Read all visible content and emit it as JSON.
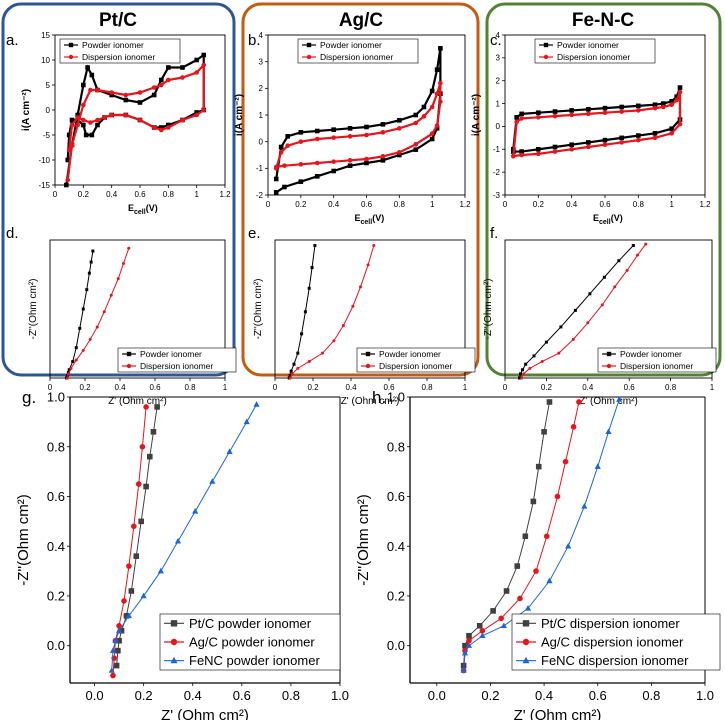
{
  "groups": [
    {
      "title": "Pt/C",
      "color": "#2f5597"
    },
    {
      "title": "Ag/C",
      "color": "#c55a11"
    },
    {
      "title": "Fe-N-C",
      "color": "#548235"
    }
  ],
  "colors": {
    "powder": "#000000",
    "dispersion": "#e8141b",
    "pt": "#404040",
    "ag": "#e8141b",
    "fenc": "#1a66d9"
  },
  "chart_data": [
    {
      "id": "a",
      "panel_label": "a.",
      "type": "line",
      "xlabel_main": "E",
      "xlabel_sub": "cell",
      "xlabel_tail": "(V)",
      "ylabel": "i(A cm⁻²)",
      "xlim": [
        0,
        1.2
      ],
      "ylim": [
        -15,
        15
      ],
      "xticks": [
        "0",
        "0.2",
        "0.4",
        "0.6",
        "0.8",
        "1",
        "1.2"
      ],
      "yticks": [
        "15",
        "10",
        "5",
        "0",
        "-5",
        "-10",
        "-15"
      ],
      "legend": [
        "Powder ionomer",
        "Dispersion ionomer"
      ],
      "series": [
        {
          "name": "Powder ionomer",
          "kind": "powder",
          "x": [
            0.08,
            0.12,
            0.16,
            0.2,
            0.23,
            0.26,
            0.3,
            0.4,
            0.5,
            0.6,
            0.7,
            0.75,
            0.8,
            0.9,
            1.0,
            1.05,
            1.05,
            1.0,
            0.9,
            0.8,
            0.75,
            0.7,
            0.6,
            0.5,
            0.4,
            0.35,
            0.3,
            0.26,
            0.22,
            0.2,
            0.16,
            0.12,
            0.1,
            0.09
          ],
          "y": [
            -15,
            -7,
            -1,
            5,
            8.5,
            7,
            4,
            3,
            2,
            1.5,
            3,
            6,
            8.5,
            8.5,
            10,
            11,
            0,
            -0.5,
            -2,
            -3,
            -3.5,
            -3.5,
            -2,
            -1,
            -1,
            -1.5,
            -3,
            -5,
            -5,
            -3,
            -2,
            -2,
            -5,
            -10
          ]
        },
        {
          "name": "Dispersion ionomer",
          "kind": "dispersion",
          "x": [
            0.09,
            0.12,
            0.16,
            0.2,
            0.25,
            0.3,
            0.4,
            0.5,
            0.6,
            0.7,
            0.75,
            0.8,
            0.9,
            1.0,
            1.05,
            1.05,
            1.0,
            0.9,
            0.8,
            0.75,
            0.7,
            0.6,
            0.5,
            0.4,
            0.35,
            0.3,
            0.25,
            0.2,
            0.16,
            0.12,
            0.1
          ],
          "y": [
            -14,
            -7,
            -3,
            1,
            4,
            4,
            3.5,
            3,
            3.5,
            4.5,
            5,
            6,
            6.5,
            7.5,
            9,
            0,
            -1,
            -2,
            -3.5,
            -4,
            -3.5,
            -2,
            -1,
            -1,
            -1.5,
            -2,
            -2.5,
            -2,
            -1.5,
            -3,
            -8
          ]
        }
      ]
    },
    {
      "id": "b",
      "panel_label": "b.",
      "type": "line",
      "xlabel_main": "E",
      "xlabel_sub": "cell",
      "xlabel_tail": "(V)",
      "ylabel": "i(A cm⁻²)",
      "xlim": [
        0,
        1.2
      ],
      "ylim": [
        -2,
        4
      ],
      "xticks": [
        "0",
        "0.2",
        "0.4",
        "0.6",
        "0.8",
        "1",
        "1.2"
      ],
      "yticks": [
        "4",
        "3",
        "2",
        "1",
        "0",
        "-1",
        "-2"
      ],
      "legend": [
        "Powder ionomer",
        "Dispersion ionomer"
      ],
      "series": [
        {
          "name": "Powder ionomer",
          "kind": "powder",
          "x": [
            0.05,
            0.08,
            0.12,
            0.2,
            0.3,
            0.4,
            0.5,
            0.6,
            0.7,
            0.8,
            0.9,
            0.95,
            1.0,
            1.03,
            1.05,
            1.05,
            1.03,
            1.0,
            0.9,
            0.8,
            0.7,
            0.6,
            0.5,
            0.4,
            0.3,
            0.2,
            0.1,
            0.05
          ],
          "y": [
            -1.4,
            -0.2,
            0.2,
            0.35,
            0.4,
            0.45,
            0.5,
            0.55,
            0.65,
            0.8,
            1.0,
            1.3,
            1.9,
            2.7,
            3.5,
            1.8,
            0.5,
            0.1,
            -0.3,
            -0.5,
            -0.7,
            -0.8,
            -0.9,
            -1.1,
            -1.3,
            -1.5,
            -1.7,
            -1.9
          ]
        },
        {
          "name": "Dispersion ionomer",
          "kind": "dispersion",
          "x": [
            0.05,
            0.08,
            0.12,
            0.2,
            0.3,
            0.4,
            0.5,
            0.6,
            0.7,
            0.8,
            0.9,
            0.95,
            1.0,
            1.03,
            1.05,
            1.05,
            1.03,
            1.0,
            0.9,
            0.8,
            0.7,
            0.6,
            0.5,
            0.4,
            0.3,
            0.2,
            0.1,
            0.05
          ],
          "y": [
            -1.0,
            -0.4,
            -0.15,
            0.0,
            0.1,
            0.15,
            0.2,
            0.25,
            0.35,
            0.5,
            0.7,
            0.95,
            1.3,
            1.8,
            2.2,
            1.5,
            0.6,
            0.3,
            -0.1,
            -0.4,
            -0.55,
            -0.65,
            -0.7,
            -0.75,
            -0.8,
            -0.85,
            -0.9,
            -0.95
          ]
        }
      ]
    },
    {
      "id": "c",
      "panel_label": "c.",
      "type": "line",
      "xlabel_main": "E",
      "xlabel_sub": "cell",
      "xlabel_tail": "(V)",
      "ylabel": "i(A cm⁻²)",
      "xlim": [
        0,
        1.2
      ],
      "ylim": [
        -3,
        4
      ],
      "xticks": [
        "0",
        "0.2",
        "0.4",
        "0.6",
        "0.8",
        "1",
        "1.2"
      ],
      "yticks": [
        "4",
        "3",
        "2",
        "1",
        "0",
        "-1",
        "-2",
        "-3"
      ],
      "legend": [
        "Powder ionomer",
        "Dispersion ionomer"
      ],
      "series": [
        {
          "name": "Powder ionomer",
          "kind": "powder",
          "x": [
            0.05,
            0.07,
            0.1,
            0.2,
            0.3,
            0.4,
            0.5,
            0.6,
            0.7,
            0.8,
            0.9,
            0.95,
            1.0,
            1.03,
            1.05,
            1.05,
            1.0,
            0.9,
            0.8,
            0.7,
            0.6,
            0.5,
            0.4,
            0.3,
            0.2,
            0.1,
            0.05
          ],
          "y": [
            -1.0,
            0.4,
            0.55,
            0.6,
            0.65,
            0.7,
            0.75,
            0.8,
            0.85,
            0.9,
            0.95,
            1.0,
            1.1,
            1.3,
            1.7,
            0.3,
            -0.1,
            -0.3,
            -0.4,
            -0.5,
            -0.6,
            -0.7,
            -0.8,
            -0.9,
            -1.0,
            -1.1,
            -1.1
          ]
        },
        {
          "name": "Dispersion ionomer",
          "kind": "dispersion",
          "x": [
            0.05,
            0.07,
            0.1,
            0.2,
            0.3,
            0.4,
            0.5,
            0.6,
            0.7,
            0.8,
            0.9,
            0.95,
            1.0,
            1.03,
            1.05,
            1.05,
            1.0,
            0.9,
            0.8,
            0.7,
            0.6,
            0.5,
            0.4,
            0.3,
            0.2,
            0.1,
            0.05
          ],
          "y": [
            -1.3,
            0.2,
            0.35,
            0.4,
            0.45,
            0.5,
            0.55,
            0.6,
            0.65,
            0.7,
            0.8,
            0.85,
            0.95,
            1.15,
            1.5,
            0.1,
            -0.3,
            -0.5,
            -0.6,
            -0.7,
            -0.8,
            -0.9,
            -1.0,
            -1.1,
            -1.2,
            -1.25,
            -1.3
          ]
        }
      ]
    },
    {
      "id": "d",
      "panel_label": "d.",
      "type": "line",
      "xlabel": "Z' (Ohm cm²)",
      "ylabel": "-Z''(Ohm cm²)",
      "xlim": [
        0,
        1.0
      ],
      "ylim": [
        0,
        1.0
      ],
      "xticks": [
        "0",
        "0.2",
        "0.4",
        "0.6",
        "0.8",
        "1"
      ],
      "yticks": [],
      "legend": [
        "Powder ionomer",
        "Dispersion ionomer"
      ],
      "series": [
        {
          "name": "Powder ionomer",
          "kind": "powder",
          "x": [
            0.095,
            0.1,
            0.105,
            0.11,
            0.13,
            0.15,
            0.17,
            0.19,
            0.21,
            0.225,
            0.235,
            0.245
          ],
          "y": [
            0.0,
            0.02,
            0.04,
            0.06,
            0.12,
            0.22,
            0.36,
            0.5,
            0.64,
            0.76,
            0.84,
            0.92
          ]
        },
        {
          "name": "Dispersion ionomer",
          "kind": "dispersion",
          "x": [
            0.1,
            0.105,
            0.12,
            0.15,
            0.19,
            0.23,
            0.27,
            0.31,
            0.35,
            0.39,
            0.42,
            0.45
          ],
          "y": [
            0.0,
            0.03,
            0.07,
            0.13,
            0.2,
            0.28,
            0.37,
            0.48,
            0.6,
            0.72,
            0.83,
            0.94
          ]
        }
      ]
    },
    {
      "id": "e",
      "panel_label": "e.",
      "type": "line",
      "xlabel": "Z' (Ohm cm²)",
      "ylabel": "-Z''(Ohm cm²)",
      "xlim": [
        0,
        1.0
      ],
      "ylim": [
        0,
        1.0
      ],
      "xticks": [
        "0",
        "0.2",
        "0.4",
        "0.6",
        "0.8",
        "1"
      ],
      "yticks": [],
      "legend": [
        "Powder ionomer",
        "Dispersion ionomer"
      ],
      "series": [
        {
          "name": "Powder ionomer",
          "kind": "powder",
          "x": [
            0.075,
            0.08,
            0.085,
            0.1,
            0.12,
            0.14,
            0.16,
            0.18,
            0.195,
            0.21
          ],
          "y": [
            0.0,
            0.02,
            0.05,
            0.1,
            0.18,
            0.32,
            0.48,
            0.65,
            0.8,
            0.96
          ]
        },
        {
          "name": "Dispersion ionomer",
          "kind": "dispersion",
          "x": [
            0.08,
            0.09,
            0.12,
            0.18,
            0.25,
            0.31,
            0.36,
            0.41,
            0.45,
            0.49,
            0.52
          ],
          "y": [
            0.0,
            0.03,
            0.07,
            0.12,
            0.18,
            0.27,
            0.38,
            0.52,
            0.66,
            0.82,
            0.96
          ]
        }
      ]
    },
    {
      "id": "f",
      "panel_label": "f.",
      "type": "line",
      "xlabel": "Z' (Ohm cm²)",
      "ylabel": "-Z''(Ohm cm²)",
      "xlim": [
        0,
        1.0
      ],
      "ylim": [
        0,
        1.0
      ],
      "xticks": [
        "0",
        "0.2",
        "0.4",
        "0.6",
        "0.8",
        "1"
      ],
      "yticks": [],
      "legend": [
        "Powder ionomer",
        "Dispersion ionomer"
      ],
      "series": [
        {
          "name": "Powder ionomer",
          "kind": "powder",
          "x": [
            0.07,
            0.075,
            0.085,
            0.1,
            0.14,
            0.2,
            0.27,
            0.34,
            0.41,
            0.48,
            0.55,
            0.62
          ],
          "y": [
            0.0,
            0.03,
            0.06,
            0.1,
            0.16,
            0.26,
            0.37,
            0.49,
            0.61,
            0.73,
            0.85,
            0.96
          ]
        },
        {
          "name": "Dispersion ionomer",
          "kind": "dispersion",
          "x": [
            0.08,
            0.09,
            0.12,
            0.18,
            0.26,
            0.33,
            0.4,
            0.47,
            0.53,
            0.59,
            0.64,
            0.68
          ],
          "y": [
            0.0,
            0.03,
            0.07,
            0.12,
            0.18,
            0.28,
            0.4,
            0.53,
            0.66,
            0.78,
            0.89,
            0.97
          ]
        }
      ]
    },
    {
      "id": "g",
      "panel_label": "g.",
      "type": "line",
      "xlabel": "Z' (Ohm cm²)",
      "ylabel": "-Z''(Ohm cm²)",
      "xlim": [
        -0.1,
        1.0
      ],
      "ylim": [
        -0.15,
        1.0
      ],
      "xticks": [
        "0.0",
        "0.2",
        "0.4",
        "0.6",
        "0.8",
        "1.0"
      ],
      "yticks": [
        "1.0",
        "0.8",
        "0.6",
        "0.4",
        "0.2",
        "0.0"
      ],
      "legend": [
        "Pt/C powder ionomer",
        "Ag/C powder ionomer",
        "FeNC powder ionomer"
      ],
      "series": [
        {
          "name": "Pt/C powder ionomer",
          "kind": "pt",
          "x": [
            0.09,
            0.095,
            0.1,
            0.11,
            0.13,
            0.15,
            0.17,
            0.19,
            0.21,
            0.225,
            0.24,
            0.255
          ],
          "y": [
            -0.08,
            -0.02,
            0.02,
            0.06,
            0.12,
            0.22,
            0.36,
            0.5,
            0.64,
            0.76,
            0.86,
            0.96
          ]
        },
        {
          "name": "Ag/C powder ionomer",
          "kind": "ag",
          "x": [
            0.075,
            0.08,
            0.085,
            0.1,
            0.12,
            0.14,
            0.16,
            0.18,
            0.195,
            0.21
          ],
          "y": [
            -0.12,
            -0.05,
            0.02,
            0.08,
            0.18,
            0.32,
            0.48,
            0.65,
            0.8,
            0.96
          ]
        },
        {
          "name": "FeNC powder ionomer",
          "kind": "fenc",
          "x": [
            0.07,
            0.075,
            0.085,
            0.1,
            0.14,
            0.2,
            0.27,
            0.34,
            0.41,
            0.48,
            0.55,
            0.62,
            0.66
          ],
          "y": [
            -0.1,
            -0.02,
            0.02,
            0.06,
            0.12,
            0.2,
            0.3,
            0.42,
            0.54,
            0.66,
            0.78,
            0.9,
            0.97
          ]
        }
      ]
    },
    {
      "id": "h",
      "panel_label": "h.",
      "type": "line",
      "xlabel": "Z' (Ohm cm²)",
      "ylabel": "-Z''(Ohm cm²)",
      "xlim": [
        -0.1,
        1.0
      ],
      "ylim": [
        -0.15,
        1.0
      ],
      "xticks": [
        "0.0",
        "0.2",
        "0.4",
        "0.6",
        "0.8",
        "1.0"
      ],
      "yticks": [
        "1.0",
        "0.8",
        "0.6",
        "0.4",
        "0.2",
        "0.0"
      ],
      "legend": [
        "Pt/C dispersion ionomer",
        "Ag/C dispersion ionomer",
        "FeNC dispersion ionomer"
      ],
      "series": [
        {
          "name": "Pt/C dispersion ionomer",
          "kind": "pt",
          "x": [
            0.1,
            0.105,
            0.12,
            0.16,
            0.21,
            0.26,
            0.3,
            0.33,
            0.36,
            0.38,
            0.4,
            0.42
          ],
          "y": [
            -0.08,
            0.0,
            0.04,
            0.08,
            0.14,
            0.22,
            0.32,
            0.44,
            0.58,
            0.72,
            0.86,
            0.98
          ]
        },
        {
          "name": "Ag/C dispersion ionomer",
          "kind": "ag",
          "x": [
            0.1,
            0.105,
            0.12,
            0.17,
            0.24,
            0.31,
            0.37,
            0.41,
            0.45,
            0.48,
            0.51,
            0.53
          ],
          "y": [
            -0.1,
            -0.02,
            0.02,
            0.06,
            0.11,
            0.19,
            0.3,
            0.44,
            0.6,
            0.74,
            0.88,
            0.98
          ]
        },
        {
          "name": "FeNC dispersion ionomer",
          "kind": "fenc",
          "x": [
            0.1,
            0.105,
            0.12,
            0.17,
            0.25,
            0.34,
            0.42,
            0.49,
            0.55,
            0.6,
            0.64,
            0.68
          ],
          "y": [
            -0.1,
            -0.03,
            0.0,
            0.04,
            0.08,
            0.15,
            0.26,
            0.4,
            0.56,
            0.72,
            0.86,
            0.99
          ]
        }
      ]
    }
  ]
}
